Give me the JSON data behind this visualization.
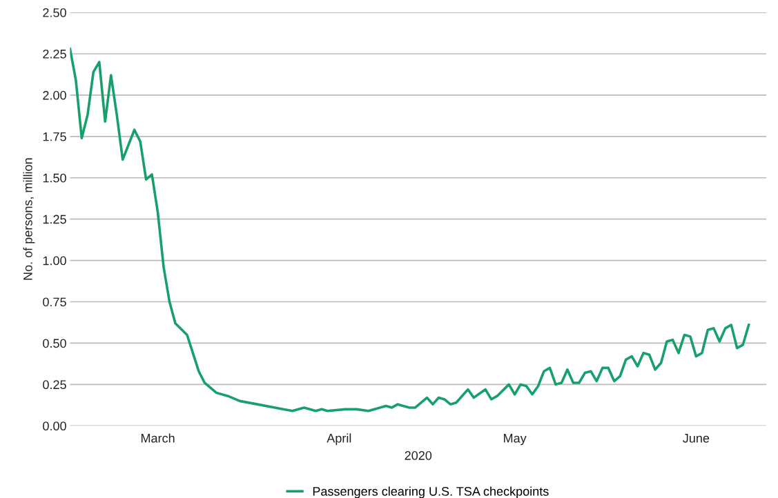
{
  "chart_data": {
    "type": "line",
    "xlabel": "2020",
    "ylabel": "No. of persons, million",
    "x": [
      "2020-03-01",
      "2020-03-02",
      "2020-03-03",
      "2020-03-04",
      "2020-03-05",
      "2020-03-06",
      "2020-03-07",
      "2020-03-08",
      "2020-03-09",
      "2020-03-10",
      "2020-03-12",
      "2020-03-13",
      "2020-03-14",
      "2020-03-15",
      "2020-03-16",
      "2020-03-17",
      "2020-03-18",
      "2020-03-19",
      "2020-03-21",
      "2020-03-22",
      "2020-03-23",
      "2020-03-24",
      "2020-03-26",
      "2020-03-28",
      "2020-03-30",
      "2020-04-02",
      "2020-04-05",
      "2020-04-08",
      "2020-04-10",
      "2020-04-12",
      "2020-04-13",
      "2020-04-14",
      "2020-04-17",
      "2020-04-19",
      "2020-04-21",
      "2020-04-24",
      "2020-04-25",
      "2020-04-26",
      "2020-04-28",
      "2020-04-29",
      "2020-05-01",
      "2020-05-02",
      "2020-05-03",
      "2020-05-04",
      "2020-05-05",
      "2020-05-06",
      "2020-05-08",
      "2020-05-09",
      "2020-05-11",
      "2020-05-12",
      "2020-05-13",
      "2020-05-15",
      "2020-05-16",
      "2020-05-17",
      "2020-05-18",
      "2020-05-19",
      "2020-05-20",
      "2020-05-21",
      "2020-05-22",
      "2020-05-23",
      "2020-05-24",
      "2020-05-25",
      "2020-05-26",
      "2020-05-27",
      "2020-05-28",
      "2020-05-29",
      "2020-05-30",
      "2020-05-31",
      "2020-06-01",
      "2020-06-02",
      "2020-06-03",
      "2020-06-04",
      "2020-06-05",
      "2020-06-06",
      "2020-06-07",
      "2020-06-08",
      "2020-06-09",
      "2020-06-10",
      "2020-06-11",
      "2020-06-12",
      "2020-06-13",
      "2020-06-14",
      "2020-06-15",
      "2020-06-16",
      "2020-06-17",
      "2020-06-18",
      "2020-06-19",
      "2020-06-20",
      "2020-06-21",
      "2020-06-22",
      "2020-06-23",
      "2020-06-24",
      "2020-06-25"
    ],
    "series": [
      {
        "name": "Passengers clearing U.S. TSA checkpoints",
        "color": "#17a06b",
        "values": [
          2.28,
          2.09,
          1.74,
          1.88,
          2.14,
          2.2,
          1.84,
          2.12,
          1.88,
          1.61,
          1.79,
          1.72,
          1.49,
          1.52,
          1.29,
          0.96,
          0.75,
          0.62,
          0.55,
          0.44,
          0.33,
          0.26,
          0.2,
          0.18,
          0.15,
          0.13,
          0.11,
          0.09,
          0.11,
          0.09,
          0.1,
          0.09,
          0.1,
          0.1,
          0.09,
          0.12,
          0.11,
          0.13,
          0.11,
          0.11,
          0.17,
          0.13,
          0.17,
          0.16,
          0.13,
          0.14,
          0.22,
          0.17,
          0.22,
          0.16,
          0.18,
          0.25,
          0.19,
          0.25,
          0.24,
          0.19,
          0.24,
          0.33,
          0.35,
          0.25,
          0.26,
          0.34,
          0.26,
          0.26,
          0.32,
          0.33,
          0.27,
          0.35,
          0.35,
          0.27,
          0.3,
          0.4,
          0.42,
          0.36,
          0.44,
          0.43,
          0.34,
          0.38,
          0.51,
          0.52,
          0.44,
          0.55,
          0.54,
          0.42,
          0.44,
          0.58,
          0.59,
          0.51,
          0.59,
          0.61,
          0.47,
          0.49,
          0.61
        ]
      }
    ],
    "xlim": [
      "2020-03-01",
      "2020-06-28"
    ],
    "xticks": [
      {
        "value": "2020-03-16",
        "label": "March"
      },
      {
        "value": "2020-04-16",
        "label": "April"
      },
      {
        "value": "2020-05-16",
        "label": "May"
      },
      {
        "value": "2020-06-16",
        "label": "June"
      }
    ],
    "ylim": [
      0,
      2.5
    ],
    "yticks": [
      {
        "value": 0,
        "label": "0.00"
      },
      {
        "value": 0.25,
        "label": "0.25"
      },
      {
        "value": 0.5,
        "label": "0.50"
      },
      {
        "value": 0.75,
        "label": "0.75"
      },
      {
        "value": 1,
        "label": "1.00"
      },
      {
        "value": 1.25,
        "label": "1.25"
      },
      {
        "value": 1.5,
        "label": "1.50"
      },
      {
        "value": 1.75,
        "label": "1.75"
      },
      {
        "value": 2,
        "label": "2.00"
      },
      {
        "value": 2.25,
        "label": "2.25"
      },
      {
        "value": 2.5,
        "label": "2.50"
      }
    ],
    "grid": "y",
    "legend": "bottom",
    "marker": "none",
    "line_style": "solid"
  }
}
